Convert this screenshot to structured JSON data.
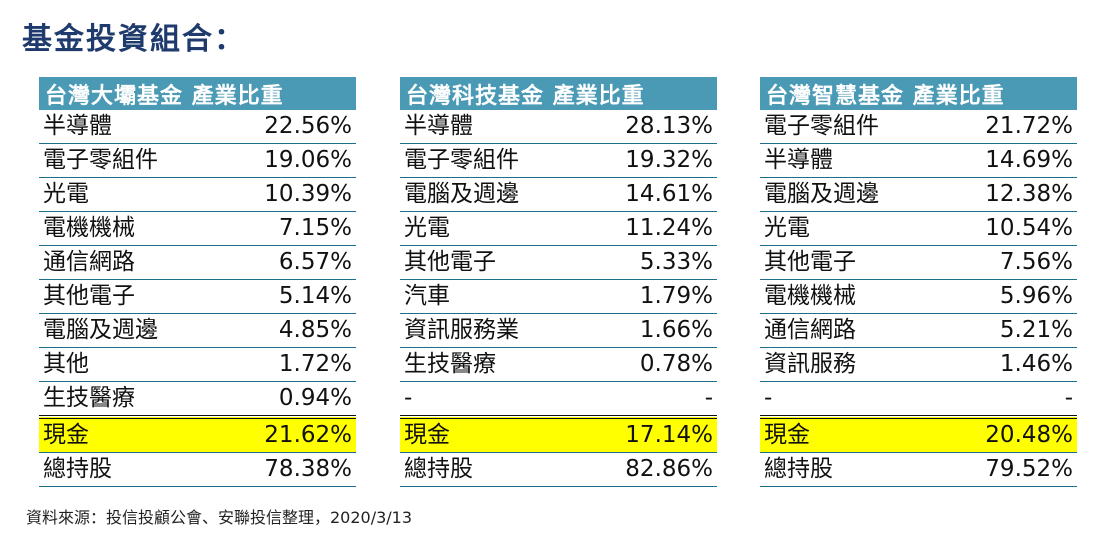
{
  "title": "基金投資組合：",
  "funds": [
    {
      "header": "台灣大壩基金 產業比重",
      "rows": [
        {
          "name": "半導體",
          "value": "22.56%"
        },
        {
          "name": "電子零組件",
          "value": "19.06%"
        },
        {
          "name": "光電",
          "value": "10.39%"
        },
        {
          "name": "電機機械",
          "value": "7.15%"
        },
        {
          "name": "通信網路",
          "value": "6.57%"
        },
        {
          "name": "其他電子",
          "value": "5.14%"
        },
        {
          "name": "電腦及週邊",
          "value": "4.85%"
        },
        {
          "name": "其他",
          "value": "1.72%"
        },
        {
          "name": "生技醫療",
          "value": "0.94%"
        }
      ],
      "cash": {
        "name": "現金",
        "value": "21.62%"
      },
      "total": {
        "name": "總持股",
        "value": "78.38%"
      }
    },
    {
      "header": "台灣科技基金 產業比重",
      "rows": [
        {
          "name": "半導體",
          "value": "28.13%"
        },
        {
          "name": "電子零組件",
          "value": "19.32%"
        },
        {
          "name": "電腦及週邊",
          "value": "14.61%"
        },
        {
          "name": "光電",
          "value": "11.24%"
        },
        {
          "name": "其他電子",
          "value": "5.33%"
        },
        {
          "name": "汽車",
          "value": "1.79%"
        },
        {
          "name": "資訊服務業",
          "value": "1.66%"
        },
        {
          "name": "生技醫療",
          "value": "0.78%"
        },
        {
          "name": "-",
          "value": "-"
        }
      ],
      "cash": {
        "name": "現金",
        "value": "17.14%"
      },
      "total": {
        "name": "總持股",
        "value": "82.86%"
      }
    },
    {
      "header": "台灣智慧基金 產業比重",
      "rows": [
        {
          "name": "電子零組件",
          "value": "21.72%"
        },
        {
          "name": "半導體",
          "value": "14.69%"
        },
        {
          "name": "電腦及週邊",
          "value": "12.38%"
        },
        {
          "name": "光電",
          "value": "10.54%"
        },
        {
          "name": "其他電子",
          "value": "7.56%"
        },
        {
          "name": "電機機械",
          "value": "5.96%"
        },
        {
          "name": "通信網路",
          "value": "5.21%"
        },
        {
          "name": "資訊服務",
          "value": "1.46%"
        },
        {
          "name": "-",
          "value": "-"
        }
      ],
      "cash": {
        "name": "現金",
        "value": "20.48%"
      },
      "total": {
        "name": "總持股",
        "value": "79.52%"
      }
    }
  ],
  "source": "資料來源：投信投顧公會、安聯投信整理，2020/3/13"
}
